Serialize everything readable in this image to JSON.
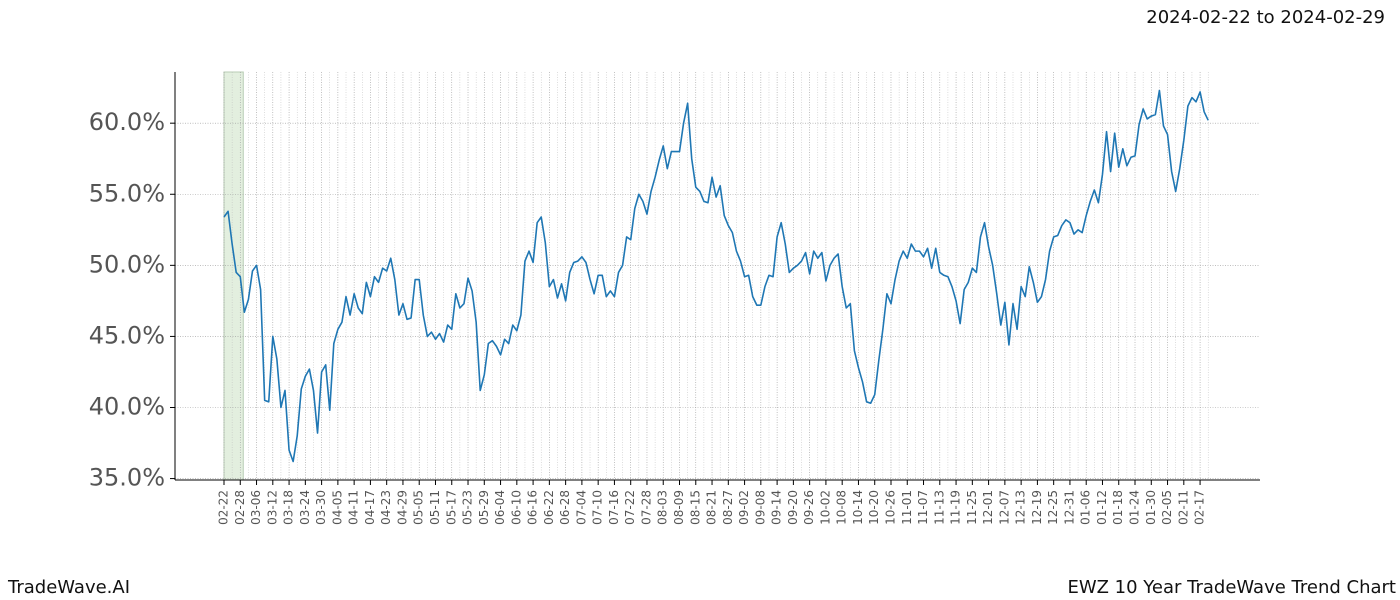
{
  "header": {
    "date_range": "2024-02-22 to 2024-02-29"
  },
  "footer": {
    "left": "TradeWave.AI",
    "right": "EWZ 10 Year TradeWave Trend Chart"
  },
  "chart_data": {
    "type": "line",
    "color": "#1f77b4",
    "grid": true,
    "highlight": {
      "from": "02-22",
      "to": "02-28",
      "color": "#e3efdf"
    },
    "ylim": [
      34.9,
      63.6
    ],
    "yticks": [
      {
        "value": 35,
        "label": "35.0%"
      },
      {
        "value": 40,
        "label": "40.0%"
      },
      {
        "value": 45,
        "label": "45.0%"
      },
      {
        "value": 50,
        "label": "50.0%"
      },
      {
        "value": 55,
        "label": "55.0%"
      },
      {
        "value": 60,
        "label": "60.0%"
      }
    ],
    "categories": [
      "02-22",
      null,
      null,
      null,
      "02-28",
      null,
      null,
      null,
      "03-06",
      null,
      null,
      null,
      "03-12",
      null,
      null,
      null,
      "03-18",
      null,
      null,
      null,
      "03-24",
      null,
      null,
      null,
      "03-30",
      null,
      null,
      null,
      "04-05",
      null,
      null,
      null,
      "04-11",
      null,
      null,
      null,
      "04-17",
      null,
      null,
      null,
      "04-23",
      null,
      null,
      null,
      "04-29",
      null,
      null,
      null,
      "05-05",
      null,
      null,
      null,
      "05-11",
      null,
      null,
      null,
      "05-17",
      null,
      null,
      null,
      "05-23",
      null,
      null,
      null,
      "05-29",
      null,
      null,
      null,
      "06-04",
      null,
      null,
      null,
      "06-10",
      null,
      null,
      null,
      "06-16",
      null,
      null,
      null,
      "06-22",
      null,
      null,
      null,
      "06-28",
      null,
      null,
      null,
      "07-04",
      null,
      null,
      null,
      "07-10",
      null,
      null,
      null,
      "07-16",
      null,
      null,
      null,
      "07-22",
      null,
      null,
      null,
      "07-28",
      null,
      null,
      null,
      "08-03",
      null,
      null,
      null,
      "08-09",
      null,
      null,
      null,
      "08-15",
      null,
      null,
      null,
      "08-21",
      null,
      null,
      null,
      "08-27",
      null,
      null,
      null,
      "09-02",
      null,
      null,
      null,
      "09-08",
      null,
      null,
      null,
      "09-14",
      null,
      null,
      null,
      "09-20",
      null,
      null,
      null,
      "09-26",
      null,
      null,
      null,
      "10-02",
      null,
      null,
      null,
      "10-08",
      null,
      null,
      null,
      "10-14",
      null,
      null,
      null,
      "10-20",
      null,
      null,
      null,
      "10-26",
      null,
      null,
      null,
      "11-01",
      null,
      null,
      null,
      "11-07",
      null,
      null,
      null,
      "11-13",
      null,
      null,
      null,
      "11-19",
      null,
      null,
      null,
      "11-25",
      null,
      null,
      null,
      "12-01",
      null,
      null,
      null,
      "12-07",
      null,
      null,
      null,
      "12-13",
      null,
      null,
      null,
      "12-19",
      null,
      null,
      null,
      "12-25",
      null,
      null,
      null,
      "12-31",
      null,
      null,
      null,
      "01-06",
      null,
      null,
      null,
      "01-12",
      null,
      null,
      null,
      "01-18",
      null,
      null,
      null,
      "01-24",
      null,
      null,
      null,
      "01-30",
      null,
      null,
      null,
      "02-05",
      null,
      null,
      null,
      "02-11",
      null,
      null,
      null,
      "02-17",
      null,
      null
    ],
    "values": [
      53.4,
      53.8,
      51.5,
      49.5,
      49.2,
      46.7,
      47.6,
      49.6,
      50.0,
      48.3,
      40.5,
      40.4,
      45.0,
      43.4,
      40.0,
      41.2,
      37.0,
      36.2,
      38.0,
      41.3,
      42.2,
      42.7,
      41.2,
      38.2,
      42.5,
      43.0,
      39.8,
      44.5,
      45.5,
      46.0,
      47.8,
      46.5,
      48.0,
      47.0,
      46.6,
      48.8,
      47.8,
      49.2,
      48.8,
      49.8,
      49.6,
      50.5,
      49.0,
      46.5,
      47.3,
      46.2,
      46.3,
      49.0,
      49.0,
      46.5,
      45.0,
      45.3,
      44.8,
      45.2,
      44.6,
      45.8,
      45.5,
      48.0,
      47.0,
      47.3,
      49.1,
      48.2,
      46.0,
      41.2,
      42.3,
      44.5,
      44.7,
      44.3,
      43.7,
      44.8,
      44.5,
      45.8,
      45.4,
      46.5,
      50.3,
      51.0,
      50.2,
      53.0,
      53.4,
      51.6,
      48.5,
      49.0,
      47.7,
      48.7,
      47.5,
      49.5,
      50.2,
      50.3,
      50.6,
      50.2,
      49.0,
      48.0,
      49.3,
      49.3,
      47.8,
      48.2,
      47.8,
      49.5,
      50.0,
      52.0,
      51.8,
      54.0,
      55.0,
      54.5,
      53.6,
      55.2,
      56.2,
      57.4,
      58.4,
      56.8,
      58.0,
      58.0,
      58.0,
      60.0,
      61.4,
      57.5,
      55.5,
      55.2,
      54.5,
      54.4,
      56.2,
      54.8,
      55.6,
      53.5,
      52.8,
      52.3,
      51.0,
      50.3,
      49.2,
      49.3,
      47.8,
      47.2,
      47.2,
      48.5,
      49.3,
      49.2,
      52.0,
      53.0,
      51.5,
      49.5,
      49.8,
      50.0,
      50.3,
      50.9,
      49.4,
      51.0,
      50.5,
      50.9,
      48.9,
      50.0,
      50.5,
      50.8,
      48.5,
      47.0,
      47.3,
      44.0,
      42.8,
      41.8,
      40.4,
      40.3,
      40.9,
      43.3,
      45.5,
      48.0,
      47.3,
      49.0,
      50.3,
      51.0,
      50.5,
      51.5,
      51.0,
      51.0,
      50.6,
      51.2,
      49.8,
      51.2,
      49.5,
      49.3,
      49.2,
      48.5,
      47.5,
      45.9,
      48.3,
      48.8,
      49.8,
      49.5,
      52.0,
      53.0,
      51.3,
      50.0,
      48.0,
      45.8,
      47.4,
      44.4,
      47.3,
      45.5,
      48.5,
      47.8,
      49.9,
      48.8,
      47.4,
      47.8,
      49.0,
      51.0,
      52.0,
      52.1,
      52.8,
      53.2,
      53.0,
      52.2,
      52.5,
      52.3,
      53.5,
      54.5,
      55.3,
      54.4,
      56.4,
      59.4,
      56.6,
      59.3,
      56.9,
      58.2,
      57.0,
      57.6,
      57.7,
      59.9,
      61.0,
      60.3,
      60.5,
      60.6,
      62.3,
      59.8,
      59.2,
      56.6,
      55.2,
      56.8,
      58.8,
      61.2,
      61.8,
      61.5,
      62.2,
      60.8,
      60.2
    ]
  }
}
